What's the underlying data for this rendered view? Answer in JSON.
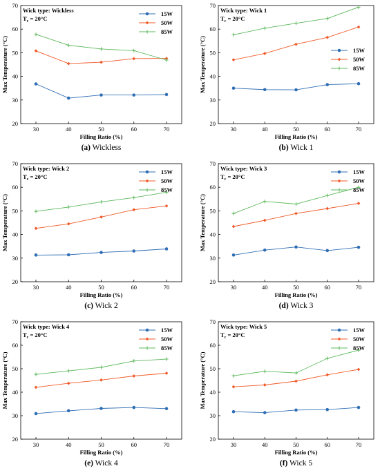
{
  "colors": {
    "15W": "#2f6eb5",
    "50W": "#f05a28",
    "85W": "#5cb85c"
  },
  "chart_data": [
    {
      "type": "line",
      "caption_letter": "(a)",
      "caption_text": "Wickless",
      "annotation": "Wick type: Wickless",
      "tc_label": "T",
      "tc_sub": "c",
      "tc_value": " = 20°C",
      "legend_position": "top-right",
      "xlabel": "Filling Ratio (%)",
      "ylabel": "Max Temperature (°C)",
      "x": [
        30,
        40,
        50,
        60,
        70
      ],
      "xticks": [
        30,
        40,
        50,
        60,
        70
      ],
      "ylim": [
        20,
        70
      ],
      "yticks": [
        20,
        30,
        40,
        50,
        60,
        70
      ],
      "series": [
        {
          "name": "15W",
          "values": [
            36.8,
            30.8,
            32.1,
            32.1,
            32.3
          ]
        },
        {
          "name": "50W",
          "values": [
            50.8,
            45.4,
            46.0,
            47.5,
            47.6
          ]
        },
        {
          "name": "85W",
          "values": [
            57.8,
            53.2,
            51.6,
            50.9,
            46.9
          ]
        }
      ]
    },
    {
      "type": "line",
      "caption_letter": "(b)",
      "caption_text": "Wick 1",
      "annotation": "Wick type: Wick 1",
      "tc_label": "T",
      "tc_sub": "c",
      "tc_value": " = 20°C",
      "legend_position": "center-right",
      "xlabel": "Filling Ratio (%)",
      "ylabel": "Max Temperature (°C)",
      "x": [
        30,
        40,
        50,
        60,
        70
      ],
      "xticks": [
        30,
        40,
        50,
        60,
        70
      ],
      "ylim": [
        20,
        70
      ],
      "yticks": [
        20,
        30,
        40,
        50,
        60,
        70
      ],
      "series": [
        {
          "name": "15W",
          "values": [
            35.0,
            34.4,
            34.3,
            36.5,
            36.9
          ]
        },
        {
          "name": "50W",
          "values": [
            47.0,
            49.7,
            53.6,
            56.5,
            60.9
          ]
        },
        {
          "name": "85W",
          "values": [
            57.6,
            60.4,
            62.5,
            64.5,
            69.3
          ]
        }
      ]
    },
    {
      "type": "line",
      "caption_letter": "(c)",
      "caption_text": "Wick 2",
      "annotation": "Wick type: Wick 2",
      "tc_label": "T",
      "tc_sub": "c",
      "tc_value": " = 20°C",
      "legend_position": "top-right",
      "xlabel": "Filling Ratio (%)",
      "ylabel": "Max Temperature (°C)",
      "x": [
        30,
        40,
        50,
        60,
        70
      ],
      "xticks": [
        30,
        40,
        50,
        60,
        70
      ],
      "ylim": [
        20,
        70
      ],
      "yticks": [
        20,
        30,
        40,
        50,
        60,
        70
      ],
      "series": [
        {
          "name": "15W",
          "values": [
            31.3,
            31.4,
            32.4,
            33.0,
            33.9
          ]
        },
        {
          "name": "50W",
          "values": [
            42.6,
            44.5,
            47.4,
            50.5,
            52.1
          ]
        },
        {
          "name": "85W",
          "values": [
            49.8,
            51.6,
            53.8,
            55.6,
            57.9
          ]
        }
      ]
    },
    {
      "type": "line",
      "caption_letter": "(d)",
      "caption_text": "Wick 3",
      "annotation": "Wick type: Wick 3",
      "tc_label": "T",
      "tc_sub": "c",
      "tc_value": " = 20°C",
      "legend_position": "top-right",
      "xlabel": "Filling Ratio (%)",
      "ylabel": "Max Temperature (°C)",
      "x": [
        30,
        40,
        50,
        60,
        70
      ],
      "xticks": [
        30,
        40,
        50,
        60,
        70
      ],
      "ylim": [
        20,
        70
      ],
      "yticks": [
        20,
        30,
        40,
        50,
        60,
        70
      ],
      "series": [
        {
          "name": "15W",
          "values": [
            31.3,
            33.4,
            34.7,
            33.2,
            34.6
          ]
        },
        {
          "name": "50W",
          "values": [
            43.4,
            46.0,
            48.9,
            51.0,
            53.2
          ]
        },
        {
          "name": "85W",
          "values": [
            48.9,
            54.0,
            52.9,
            56.5,
            60.0
          ]
        }
      ]
    },
    {
      "type": "line",
      "caption_letter": "(e)",
      "caption_text": "Wick 4",
      "annotation": "Wick type: Wick 4",
      "tc_label": "T",
      "tc_sub": "c",
      "tc_value": " = 20°C",
      "legend_position": "top-right",
      "xlabel": "Filling Ratio (%)",
      "ylabel": "Max Temperature (°C)",
      "x": [
        30,
        40,
        50,
        60,
        70
      ],
      "xticks": [
        30,
        40,
        50,
        60,
        70
      ],
      "ylim": [
        20,
        70
      ],
      "yticks": [
        20,
        30,
        40,
        50,
        60,
        70
      ],
      "series": [
        {
          "name": "15W",
          "values": [
            30.9,
            32.1,
            33.1,
            33.5,
            33.0
          ]
        },
        {
          "name": "50W",
          "values": [
            42.1,
            43.8,
            45.2,
            46.9,
            48.1
          ]
        },
        {
          "name": "85W",
          "values": [
            47.6,
            49.1,
            50.6,
            53.3,
            54.1
          ]
        }
      ]
    },
    {
      "type": "line",
      "caption_letter": "(f)",
      "caption_text": "Wick 5",
      "annotation": "Wick type: Wick 5",
      "tc_label": "T",
      "tc_sub": "c",
      "tc_value": " = 20°C",
      "legend_position": "top-right",
      "xlabel": "Filling Ratio (%)",
      "ylabel": "Max Temperature (°C)",
      "x": [
        30,
        40,
        50,
        60,
        70
      ],
      "xticks": [
        30,
        40,
        50,
        60,
        70
      ],
      "ylim": [
        20,
        70
      ],
      "yticks": [
        20,
        30,
        40,
        50,
        60,
        70
      ],
      "series": [
        {
          "name": "15W",
          "values": [
            31.7,
            31.3,
            32.4,
            32.6,
            33.5
          ]
        },
        {
          "name": "50W",
          "values": [
            42.3,
            43.1,
            44.7,
            47.4,
            49.7
          ]
        },
        {
          "name": "85W",
          "values": [
            47.0,
            48.9,
            48.2,
            54.4,
            57.9
          ]
        }
      ]
    }
  ]
}
